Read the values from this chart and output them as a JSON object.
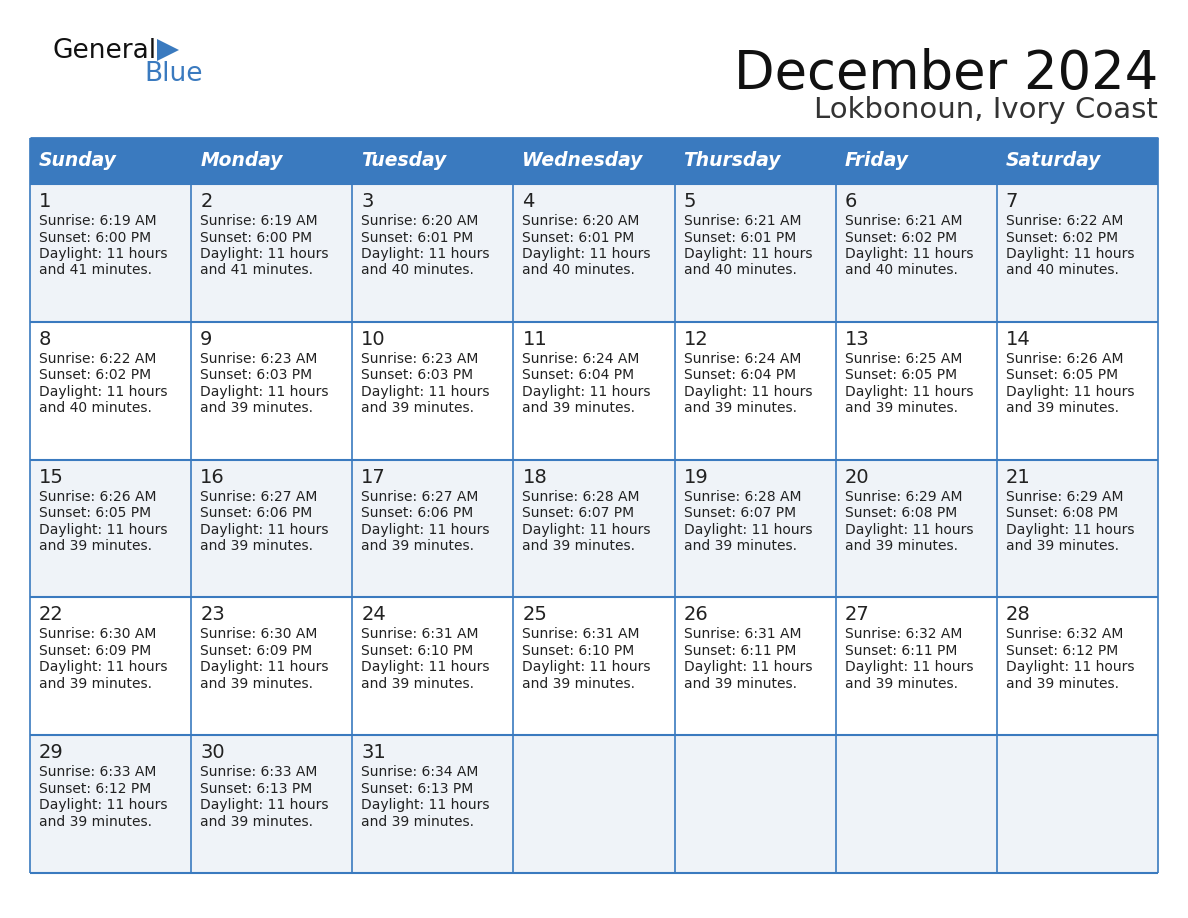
{
  "title": "December 2024",
  "subtitle": "Lokbonoun, Ivory Coast",
  "header_color": "#3a7abf",
  "header_text_color": "#ffffff",
  "day_names": [
    "Sunday",
    "Monday",
    "Tuesday",
    "Wednesday",
    "Thursday",
    "Friday",
    "Saturday"
  ],
  "row_colors": [
    "#eff3f8",
    "#ffffff",
    "#eff3f8",
    "#ffffff",
    "#eff3f8"
  ],
  "border_color": "#3a7abf",
  "text_color": "#222222",
  "calendar": [
    [
      {
        "day": "1",
        "sunrise": "6:19 AM",
        "sunset": "6:00 PM",
        "dl1": "Daylight: 11 hours",
        "dl2": "and 41 minutes."
      },
      {
        "day": "2",
        "sunrise": "6:19 AM",
        "sunset": "6:00 PM",
        "dl1": "Daylight: 11 hours",
        "dl2": "and 41 minutes."
      },
      {
        "day": "3",
        "sunrise": "6:20 AM",
        "sunset": "6:01 PM",
        "dl1": "Daylight: 11 hours",
        "dl2": "and 40 minutes."
      },
      {
        "day": "4",
        "sunrise": "6:20 AM",
        "sunset": "6:01 PM",
        "dl1": "Daylight: 11 hours",
        "dl2": "and 40 minutes."
      },
      {
        "day": "5",
        "sunrise": "6:21 AM",
        "sunset": "6:01 PM",
        "dl1": "Daylight: 11 hours",
        "dl2": "and 40 minutes."
      },
      {
        "day": "6",
        "sunrise": "6:21 AM",
        "sunset": "6:02 PM",
        "dl1": "Daylight: 11 hours",
        "dl2": "and 40 minutes."
      },
      {
        "day": "7",
        "sunrise": "6:22 AM",
        "sunset": "6:02 PM",
        "dl1": "Daylight: 11 hours",
        "dl2": "and 40 minutes."
      }
    ],
    [
      {
        "day": "8",
        "sunrise": "6:22 AM",
        "sunset": "6:02 PM",
        "dl1": "Daylight: 11 hours",
        "dl2": "and 40 minutes."
      },
      {
        "day": "9",
        "sunrise": "6:23 AM",
        "sunset": "6:03 PM",
        "dl1": "Daylight: 11 hours",
        "dl2": "and 39 minutes."
      },
      {
        "day": "10",
        "sunrise": "6:23 AM",
        "sunset": "6:03 PM",
        "dl1": "Daylight: 11 hours",
        "dl2": "and 39 minutes."
      },
      {
        "day": "11",
        "sunrise": "6:24 AM",
        "sunset": "6:04 PM",
        "dl1": "Daylight: 11 hours",
        "dl2": "and 39 minutes."
      },
      {
        "day": "12",
        "sunrise": "6:24 AM",
        "sunset": "6:04 PM",
        "dl1": "Daylight: 11 hours",
        "dl2": "and 39 minutes."
      },
      {
        "day": "13",
        "sunrise": "6:25 AM",
        "sunset": "6:05 PM",
        "dl1": "Daylight: 11 hours",
        "dl2": "and 39 minutes."
      },
      {
        "day": "14",
        "sunrise": "6:26 AM",
        "sunset": "6:05 PM",
        "dl1": "Daylight: 11 hours",
        "dl2": "and 39 minutes."
      }
    ],
    [
      {
        "day": "15",
        "sunrise": "6:26 AM",
        "sunset": "6:05 PM",
        "dl1": "Daylight: 11 hours",
        "dl2": "and 39 minutes."
      },
      {
        "day": "16",
        "sunrise": "6:27 AM",
        "sunset": "6:06 PM",
        "dl1": "Daylight: 11 hours",
        "dl2": "and 39 minutes."
      },
      {
        "day": "17",
        "sunrise": "6:27 AM",
        "sunset": "6:06 PM",
        "dl1": "Daylight: 11 hours",
        "dl2": "and 39 minutes."
      },
      {
        "day": "18",
        "sunrise": "6:28 AM",
        "sunset": "6:07 PM",
        "dl1": "Daylight: 11 hours",
        "dl2": "and 39 minutes."
      },
      {
        "day": "19",
        "sunrise": "6:28 AM",
        "sunset": "6:07 PM",
        "dl1": "Daylight: 11 hours",
        "dl2": "and 39 minutes."
      },
      {
        "day": "20",
        "sunrise": "6:29 AM",
        "sunset": "6:08 PM",
        "dl1": "Daylight: 11 hours",
        "dl2": "and 39 minutes."
      },
      {
        "day": "21",
        "sunrise": "6:29 AM",
        "sunset": "6:08 PM",
        "dl1": "Daylight: 11 hours",
        "dl2": "and 39 minutes."
      }
    ],
    [
      {
        "day": "22",
        "sunrise": "6:30 AM",
        "sunset": "6:09 PM",
        "dl1": "Daylight: 11 hours",
        "dl2": "and 39 minutes."
      },
      {
        "day": "23",
        "sunrise": "6:30 AM",
        "sunset": "6:09 PM",
        "dl1": "Daylight: 11 hours",
        "dl2": "and 39 minutes."
      },
      {
        "day": "24",
        "sunrise": "6:31 AM",
        "sunset": "6:10 PM",
        "dl1": "Daylight: 11 hours",
        "dl2": "and 39 minutes."
      },
      {
        "day": "25",
        "sunrise": "6:31 AM",
        "sunset": "6:10 PM",
        "dl1": "Daylight: 11 hours",
        "dl2": "and 39 minutes."
      },
      {
        "day": "26",
        "sunrise": "6:31 AM",
        "sunset": "6:11 PM",
        "dl1": "Daylight: 11 hours",
        "dl2": "and 39 minutes."
      },
      {
        "day": "27",
        "sunrise": "6:32 AM",
        "sunset": "6:11 PM",
        "dl1": "Daylight: 11 hours",
        "dl2": "and 39 minutes."
      },
      {
        "day": "28",
        "sunrise": "6:32 AM",
        "sunset": "6:12 PM",
        "dl1": "Daylight: 11 hours",
        "dl2": "and 39 minutes."
      }
    ],
    [
      {
        "day": "29",
        "sunrise": "6:33 AM",
        "sunset": "6:12 PM",
        "dl1": "Daylight: 11 hours",
        "dl2": "and 39 minutes."
      },
      {
        "day": "30",
        "sunrise": "6:33 AM",
        "sunset": "6:13 PM",
        "dl1": "Daylight: 11 hours",
        "dl2": "and 39 minutes."
      },
      {
        "day": "31",
        "sunrise": "6:34 AM",
        "sunset": "6:13 PM",
        "dl1": "Daylight: 11 hours",
        "dl2": "and 39 minutes."
      },
      null,
      null,
      null,
      null
    ]
  ]
}
